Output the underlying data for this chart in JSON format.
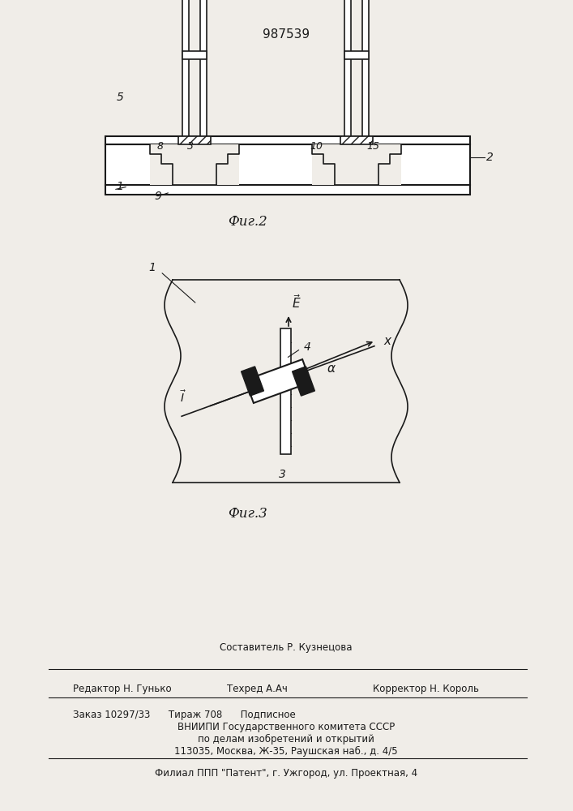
{
  "patent_number": "987539",
  "fig2_caption": "Фиг.2",
  "fig3_caption": "Фиг.3",
  "bg_color": "#f0ede8",
  "line_color": "#1a1a1a",
  "footer_line0": "Составитель Р. Кузнецова",
  "footer_line1_left": "Редактор Н. Гунько",
  "footer_line1_mid": "Техред А.Ач",
  "footer_line1_right": "Корректор Н. Король",
  "footer_line2": "Заказ 10297/33      Тираж 708      Подписное",
  "footer_line3": "ВНИИПИ Государственного комитета СССР",
  "footer_line4": "по делам изобретений и открытий",
  "footer_line5": "113035, Москва, Ж-35, Раушская наб., д. 4/5",
  "footer_line6": "Филиал ППП \"Патент\", г. Ужгород, ул. Проектная, 4"
}
